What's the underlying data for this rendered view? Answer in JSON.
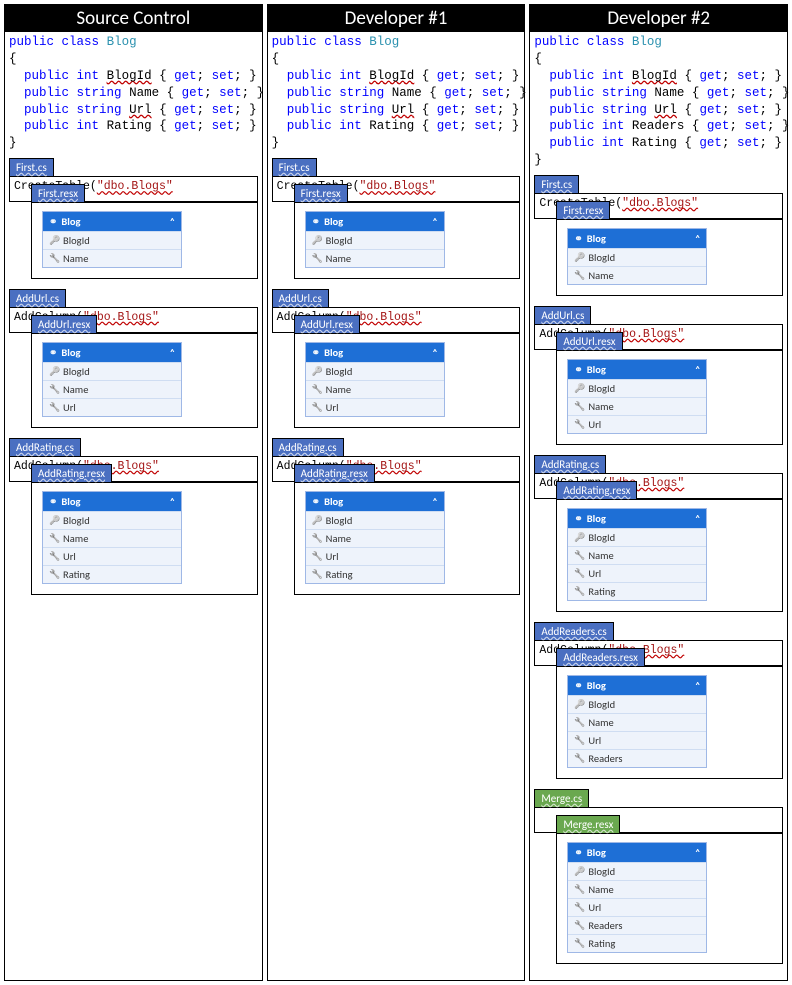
{
  "colors": {
    "blue_tab": "#4a6fc1",
    "green_tab": "#6aa84f",
    "table_header": "#1e6fd6",
    "row_bg": "#eef3fb",
    "keyword": "#0000ff",
    "type": "#2b91af",
    "string": "#a31515",
    "squiggle": "#c00000"
  },
  "columns": [
    {
      "title": "Source Control",
      "class_name": "Blog",
      "props": [
        {
          "type": "int",
          "name": "BlogId",
          "squiggle": true
        },
        {
          "type": "string",
          "name": "Name",
          "squiggle": false
        },
        {
          "type": "string",
          "name": "Url",
          "squiggle": true
        },
        {
          "type": "int",
          "name": "Rating",
          "squiggle": false
        }
      ],
      "migrations": [
        {
          "cs": "First.cs",
          "body_fn": "CreateTable",
          "body_arg": "\"dbo.Blogs\"",
          "resx": "First.resx",
          "table_name": "Blog",
          "rows": [
            {
              "icon": "key",
              "name": "BlogId"
            },
            {
              "icon": "wrench",
              "name": "Name"
            }
          ],
          "color": "blue"
        },
        {
          "cs": "AddUrl.cs",
          "body_fn": "AddColumn",
          "body_arg": "\"dbo.Blogs\"",
          "resx": "AddUrl.resx",
          "table_name": "Blog",
          "rows": [
            {
              "icon": "key",
              "name": "BlogId"
            },
            {
              "icon": "wrench",
              "name": "Name"
            },
            {
              "icon": "wrench",
              "name": "Url"
            }
          ],
          "color": "blue"
        },
        {
          "cs": "AddRating.cs",
          "body_fn": "AddColumn",
          "body_arg": "\"dbo.Blogs\"",
          "resx": "AddRating.resx",
          "table_name": "Blog",
          "rows": [
            {
              "icon": "key",
              "name": "BlogId"
            },
            {
              "icon": "wrench",
              "name": "Name"
            },
            {
              "icon": "wrench",
              "name": "Url"
            },
            {
              "icon": "wrench",
              "name": "Rating"
            }
          ],
          "color": "blue"
        }
      ]
    },
    {
      "title": "Developer #1",
      "class_name": "Blog",
      "props": [
        {
          "type": "int",
          "name": "BlogId",
          "squiggle": true
        },
        {
          "type": "string",
          "name": "Name",
          "squiggle": false
        },
        {
          "type": "string",
          "name": "Url",
          "squiggle": true
        },
        {
          "type": "int",
          "name": "Rating",
          "squiggle": false
        }
      ],
      "migrations": [
        {
          "cs": "First.cs",
          "body_fn": "CreateTable",
          "body_arg": "\"dbo.Blogs\"",
          "resx": "First.resx",
          "table_name": "Blog",
          "rows": [
            {
              "icon": "key",
              "name": "BlogId"
            },
            {
              "icon": "wrench",
              "name": "Name"
            }
          ],
          "color": "blue"
        },
        {
          "cs": "AddUrl.cs",
          "body_fn": "AddColumn",
          "body_arg": "\"dbo.Blogs\"",
          "resx": "AddUrl.resx",
          "table_name": "Blog",
          "rows": [
            {
              "icon": "key",
              "name": "BlogId"
            },
            {
              "icon": "wrench",
              "name": "Name"
            },
            {
              "icon": "wrench",
              "name": "Url"
            }
          ],
          "color": "blue"
        },
        {
          "cs": "AddRating.cs",
          "body_fn": "AddColumn",
          "body_arg": "\"dbo.Blogs\"",
          "resx": "AddRating.resx",
          "table_name": "Blog",
          "rows": [
            {
              "icon": "key",
              "name": "BlogId"
            },
            {
              "icon": "wrench",
              "name": "Name"
            },
            {
              "icon": "wrench",
              "name": "Url"
            },
            {
              "icon": "wrench",
              "name": "Rating"
            }
          ],
          "color": "blue"
        }
      ]
    },
    {
      "title": "Developer #2",
      "class_name": "Blog",
      "props": [
        {
          "type": "int",
          "name": "BlogId",
          "squiggle": true
        },
        {
          "type": "string",
          "name": "Name",
          "squiggle": false
        },
        {
          "type": "string",
          "name": "Url",
          "squiggle": true
        },
        {
          "type": "int",
          "name": "Readers",
          "squiggle": false
        },
        {
          "type": "int",
          "name": "Rating",
          "squiggle": false
        }
      ],
      "migrations": [
        {
          "cs": "First.cs",
          "body_fn": "CreateTable",
          "body_arg": "\"dbo.Blogs\"",
          "resx": "First.resx",
          "table_name": "Blog",
          "rows": [
            {
              "icon": "key",
              "name": "BlogId"
            },
            {
              "icon": "wrench",
              "name": "Name"
            }
          ],
          "color": "blue"
        },
        {
          "cs": "AddUrl.cs",
          "body_fn": "AddColumn",
          "body_arg": "\"dbo.Blogs\"",
          "resx": "AddUrl.resx",
          "table_name": "Blog",
          "rows": [
            {
              "icon": "key",
              "name": "BlogId"
            },
            {
              "icon": "wrench",
              "name": "Name"
            },
            {
              "icon": "wrench",
              "name": "Url"
            }
          ],
          "color": "blue"
        },
        {
          "cs": "AddRating.cs",
          "body_fn": "AddColumn",
          "body_arg": "\"dbo.Blogs\"",
          "resx": "AddRating.resx",
          "table_name": "Blog",
          "rows": [
            {
              "icon": "key",
              "name": "BlogId"
            },
            {
              "icon": "wrench",
              "name": "Name"
            },
            {
              "icon": "wrench",
              "name": "Url"
            },
            {
              "icon": "wrench",
              "name": "Rating"
            }
          ],
          "color": "blue"
        },
        {
          "cs": "AddReaders.cs",
          "body_fn": "AddColumn",
          "body_arg": "\"dbo.Blogs\"",
          "resx": "AddReaders.resx",
          "table_name": "Blog",
          "rows": [
            {
              "icon": "key",
              "name": "BlogId"
            },
            {
              "icon": "wrench",
              "name": "Name"
            },
            {
              "icon": "wrench",
              "name": "Url"
            },
            {
              "icon": "wrench",
              "name": "Readers"
            }
          ],
          "color": "blue"
        },
        {
          "cs": "Merge.cs",
          "body_fn": "",
          "body_arg": "",
          "resx": "Merge.resx",
          "table_name": "Blog",
          "rows": [
            {
              "icon": "key",
              "name": "BlogId"
            },
            {
              "icon": "wrench",
              "name": "Name"
            },
            {
              "icon": "wrench",
              "name": "Url"
            },
            {
              "icon": "wrench",
              "name": "Readers"
            },
            {
              "icon": "wrench",
              "name": "Rating"
            }
          ],
          "color": "green"
        }
      ]
    }
  ],
  "icons": {
    "key": "⚿",
    "wrench": "🔧",
    "link": "⚭",
    "chev": "ˆ"
  }
}
